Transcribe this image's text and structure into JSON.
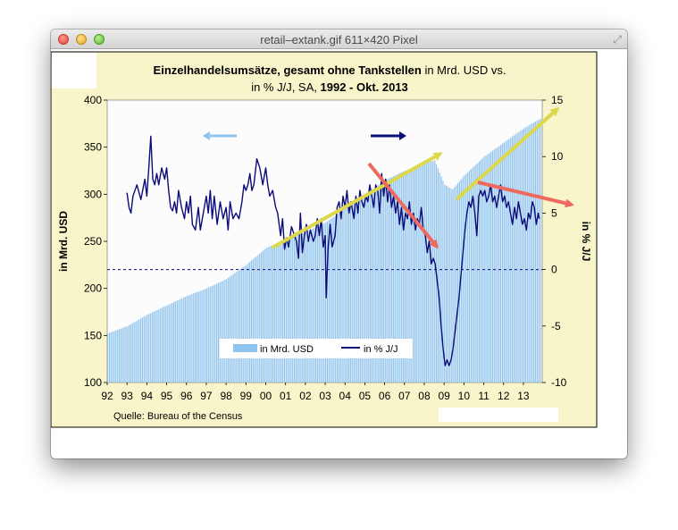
{
  "window": {
    "title": "retail–extank.gif 611×420 Pixel"
  },
  "chart_data": {
    "type": "bar+line",
    "title_bold_1": "Einzelhandelsumsätze, gesamt ohne Tankstellen",
    "title_normal_1": " in Mrd. USD vs.",
    "title_normal_2": "in % J/J, SA, ",
    "title_bold_2": "1992 - Okt. 2013",
    "ylabel_left": "in Mrd. USD",
    "ylabel_right": "in % J/J",
    "source": "Quelle: Bureau of the Census",
    "left_axis": {
      "min": 100,
      "max": 400,
      "ticks": [
        "100",
        "150",
        "200",
        "250",
        "300",
        "350",
        "400"
      ]
    },
    "right_axis": {
      "min": -10,
      "max": 15,
      "ticks": [
        "-10",
        "-5",
        "0",
        "5",
        "10",
        "15"
      ]
    },
    "x_ticks": [
      "92",
      "93",
      "94",
      "95",
      "96",
      "97",
      "98",
      "99",
      "00",
      "01",
      "02",
      "03",
      "04",
      "05",
      "06",
      "07",
      "08",
      "09",
      "10",
      "11",
      "12",
      "13"
    ],
    "legend": {
      "bar_label": "in Mrd. USD",
      "line_label": "in % J/J",
      "placement": "bottom-center"
    },
    "colors": {
      "bar": "#8ec3ee",
      "line": "#0b0b7a",
      "zero_line": "#0b0b7a",
      "frame_bg": "#f7f5c9",
      "plot_bg": "#fcfcfc",
      "arrow_yellow": "#dcd84a",
      "arrow_red": "#ee6a5f",
      "axis_arrow_left": "#8ec3ee",
      "axis_arrow_right": "#0b0b7a"
    },
    "bar_series": {
      "name": "in Mrd. USD",
      "axis": "left",
      "points": [
        [
          1992.0,
          152
        ],
        [
          1993.0,
          160
        ],
        [
          1994.0,
          172
        ],
        [
          1995.0,
          182
        ],
        [
          1996.0,
          192
        ],
        [
          1997.0,
          200
        ],
        [
          1998.0,
          210
        ],
        [
          1999.0,
          225
        ],
        [
          2000.0,
          243
        ],
        [
          2001.0,
          252
        ],
        [
          2002.0,
          260
        ],
        [
          2003.0,
          270
        ],
        [
          2004.0,
          285
        ],
        [
          2005.0,
          300
        ],
        [
          2006.0,
          315
        ],
        [
          2007.0,
          325
        ],
        [
          2008.0,
          333
        ],
        [
          2008.5,
          336
        ],
        [
          2009.0,
          310
        ],
        [
          2009.4,
          305
        ],
        [
          2010.0,
          320
        ],
        [
          2011.0,
          340
        ],
        [
          2012.0,
          355
        ],
        [
          2013.0,
          370
        ],
        [
          2013.8,
          380
        ]
      ]
    },
    "line_series": {
      "name": "in % J/J",
      "axis": "right",
      "points": [
        [
          1993.0,
          6.8
        ],
        [
          1993.1,
          5.5
        ],
        [
          1993.2,
          5.0
        ],
        [
          1993.3,
          6.5
        ],
        [
          1993.5,
          7.5
        ],
        [
          1993.7,
          6.2
        ],
        [
          1993.9,
          8.0
        ],
        [
          1994.0,
          6.5
        ],
        [
          1994.1,
          9.0
        ],
        [
          1994.2,
          11.8
        ],
        [
          1994.3,
          8.0
        ],
        [
          1994.4,
          7.5
        ],
        [
          1994.5,
          8.5
        ],
        [
          1994.6,
          7.5
        ],
        [
          1994.75,
          9.0
        ],
        [
          1994.9,
          8.0
        ],
        [
          1995.0,
          9.0
        ],
        [
          1995.1,
          7.0
        ],
        [
          1995.2,
          5.5
        ],
        [
          1995.3,
          5.2
        ],
        [
          1995.4,
          6.0
        ],
        [
          1995.5,
          5.0
        ],
        [
          1995.6,
          7.0
        ],
        [
          1995.75,
          5.5
        ],
        [
          1995.9,
          4.5
        ],
        [
          1996.0,
          6.0
        ],
        [
          1996.1,
          5.0
        ],
        [
          1996.2,
          6.5
        ],
        [
          1996.3,
          4.0
        ],
        [
          1996.45,
          3.5
        ],
        [
          1996.6,
          5.5
        ],
        [
          1996.7,
          3.5
        ],
        [
          1996.85,
          5.0
        ],
        [
          1997.0,
          6.5
        ],
        [
          1997.1,
          5.0
        ],
        [
          1997.2,
          7.0
        ],
        [
          1997.3,
          4.5
        ],
        [
          1997.4,
          6.5
        ],
        [
          1997.55,
          4.0
        ],
        [
          1997.7,
          6.0
        ],
        [
          1997.85,
          4.5
        ],
        [
          1998.0,
          5.5
        ],
        [
          1998.1,
          3.5
        ],
        [
          1998.2,
          6.0
        ],
        [
          1998.35,
          4.5
        ],
        [
          1998.5,
          5.0
        ],
        [
          1998.65,
          4.5
        ],
        [
          1998.8,
          6.0
        ],
        [
          1998.9,
          7.5
        ],
        [
          1999.0,
          7.0
        ],
        [
          1999.1,
          7.5
        ],
        [
          1999.2,
          8.5
        ],
        [
          1999.3,
          7.0
        ],
        [
          1999.4,
          7.5
        ],
        [
          1999.55,
          9.8
        ],
        [
          1999.7,
          9.0
        ],
        [
          1999.85,
          7.5
        ],
        [
          2000.0,
          9.0
        ],
        [
          2000.1,
          7.5
        ],
        [
          2000.2,
          6.5
        ],
        [
          2000.35,
          7.0
        ],
        [
          2000.5,
          5.5
        ],
        [
          2000.6,
          5.0
        ],
        [
          2000.75,
          3.0
        ],
        [
          2000.85,
          4.5
        ],
        [
          2000.95,
          1.8
        ],
        [
          2001.05,
          2.8
        ],
        [
          2001.15,
          2.0
        ],
        [
          2001.3,
          3.8
        ],
        [
          2001.45,
          3.0
        ],
        [
          2001.55,
          2.5
        ],
        [
          2001.65,
          1.0
        ],
        [
          2001.75,
          5.0
        ],
        [
          2001.85,
          1.5
        ],
        [
          2001.95,
          3.0
        ],
        [
          2002.05,
          4.0
        ],
        [
          2002.15,
          2.5
        ],
        [
          2002.25,
          3.5
        ],
        [
          2002.4,
          2.5
        ],
        [
          2002.5,
          3.0
        ],
        [
          2002.6,
          4.5
        ],
        [
          2002.7,
          3.0
        ],
        [
          2002.8,
          4.5
        ],
        [
          2002.9,
          2.0
        ],
        [
          2003.0,
          3.0
        ],
        [
          2003.05,
          -2.5
        ],
        [
          2003.15,
          2.0
        ],
        [
          2003.25,
          4.0
        ],
        [
          2003.35,
          2.0
        ],
        [
          2003.5,
          3.0
        ],
        [
          2003.6,
          5.5
        ],
        [
          2003.7,
          6.0
        ],
        [
          2003.8,
          4.5
        ],
        [
          2003.9,
          6.5
        ],
        [
          2004.0,
          5.5
        ],
        [
          2004.1,
          7.0
        ],
        [
          2004.2,
          5.0
        ],
        [
          2004.3,
          6.0
        ],
        [
          2004.45,
          4.5
        ],
        [
          2004.55,
          6.5
        ],
        [
          2004.65,
          5.0
        ],
        [
          2004.75,
          7.0
        ],
        [
          2004.85,
          6.0
        ],
        [
          2004.95,
          5.5
        ],
        [
          2005.05,
          6.5
        ],
        [
          2005.15,
          6.0
        ],
        [
          2005.25,
          7.5
        ],
        [
          2005.35,
          6.5
        ],
        [
          2005.45,
          5.5
        ],
        [
          2005.55,
          7.5
        ],
        [
          2005.65,
          7.0
        ],
        [
          2005.75,
          5.0
        ],
        [
          2005.85,
          8.5
        ],
        [
          2005.95,
          6.5
        ],
        [
          2006.05,
          8.0
        ],
        [
          2006.15,
          6.0
        ],
        [
          2006.25,
          7.5
        ],
        [
          2006.35,
          5.5
        ],
        [
          2006.45,
          6.5
        ],
        [
          2006.55,
          5.0
        ],
        [
          2006.65,
          6.0
        ],
        [
          2006.75,
          4.0
        ],
        [
          2006.85,
          5.5
        ],
        [
          2006.95,
          3.5
        ],
        [
          2007.05,
          5.0
        ],
        [
          2007.15,
          4.5
        ],
        [
          2007.25,
          6.0
        ],
        [
          2007.35,
          4.0
        ],
        [
          2007.45,
          5.0
        ],
        [
          2007.55,
          3.5
        ],
        [
          2007.65,
          4.5
        ],
        [
          2007.75,
          4.0
        ],
        [
          2007.85,
          5.5
        ],
        [
          2007.95,
          3.5
        ],
        [
          2008.05,
          3.0
        ],
        [
          2008.15,
          1.5
        ],
        [
          2008.25,
          2.5
        ],
        [
          2008.35,
          0.5
        ],
        [
          2008.45,
          1.0
        ],
        [
          2008.55,
          0.5
        ],
        [
          2008.65,
          -1.0
        ],
        [
          2008.75,
          -2.5
        ],
        [
          2008.85,
          -5.0
        ],
        [
          2008.95,
          -7.0
        ],
        [
          2009.05,
          -8.5
        ],
        [
          2009.15,
          -8.0
        ],
        [
          2009.25,
          -8.5
        ],
        [
          2009.35,
          -8.0
        ],
        [
          2009.45,
          -7.0
        ],
        [
          2009.55,
          -5.5
        ],
        [
          2009.65,
          -4.0
        ],
        [
          2009.75,
          -2.5
        ],
        [
          2009.85,
          -0.5
        ],
        [
          2009.95,
          1.5
        ],
        [
          2010.05,
          3.5
        ],
        [
          2010.15,
          5.0
        ],
        [
          2010.25,
          6.0
        ],
        [
          2010.35,
          5.5
        ],
        [
          2010.45,
          6.5
        ],
        [
          2010.55,
          5.0
        ],
        [
          2010.65,
          3.0
        ],
        [
          2010.75,
          6.5
        ],
        [
          2010.85,
          7.0
        ],
        [
          2010.95,
          6.5
        ],
        [
          2011.05,
          7.0
        ],
        [
          2011.15,
          6.0
        ],
        [
          2011.25,
          6.5
        ],
        [
          2011.35,
          7.5
        ],
        [
          2011.45,
          6.0
        ],
        [
          2011.55,
          6.5
        ],
        [
          2011.65,
          5.5
        ],
        [
          2011.75,
          6.5
        ],
        [
          2011.85,
          7.5
        ],
        [
          2011.95,
          6.0
        ],
        [
          2012.05,
          6.5
        ],
        [
          2012.15,
          5.5
        ],
        [
          2012.25,
          6.0
        ],
        [
          2012.35,
          5.0
        ],
        [
          2012.45,
          4.0
        ],
        [
          2012.55,
          5.5
        ],
        [
          2012.65,
          4.5
        ],
        [
          2012.75,
          6.0
        ],
        [
          2012.85,
          5.0
        ],
        [
          2012.95,
          4.0
        ],
        [
          2013.05,
          4.5
        ],
        [
          2013.15,
          3.5
        ],
        [
          2013.25,
          5.0
        ],
        [
          2013.35,
          4.5
        ],
        [
          2013.45,
          6.0
        ],
        [
          2013.55,
          5.5
        ],
        [
          2013.65,
          4.0
        ],
        [
          2013.75,
          5.0
        ],
        [
          2013.8,
          4.5
        ]
      ]
    }
  }
}
